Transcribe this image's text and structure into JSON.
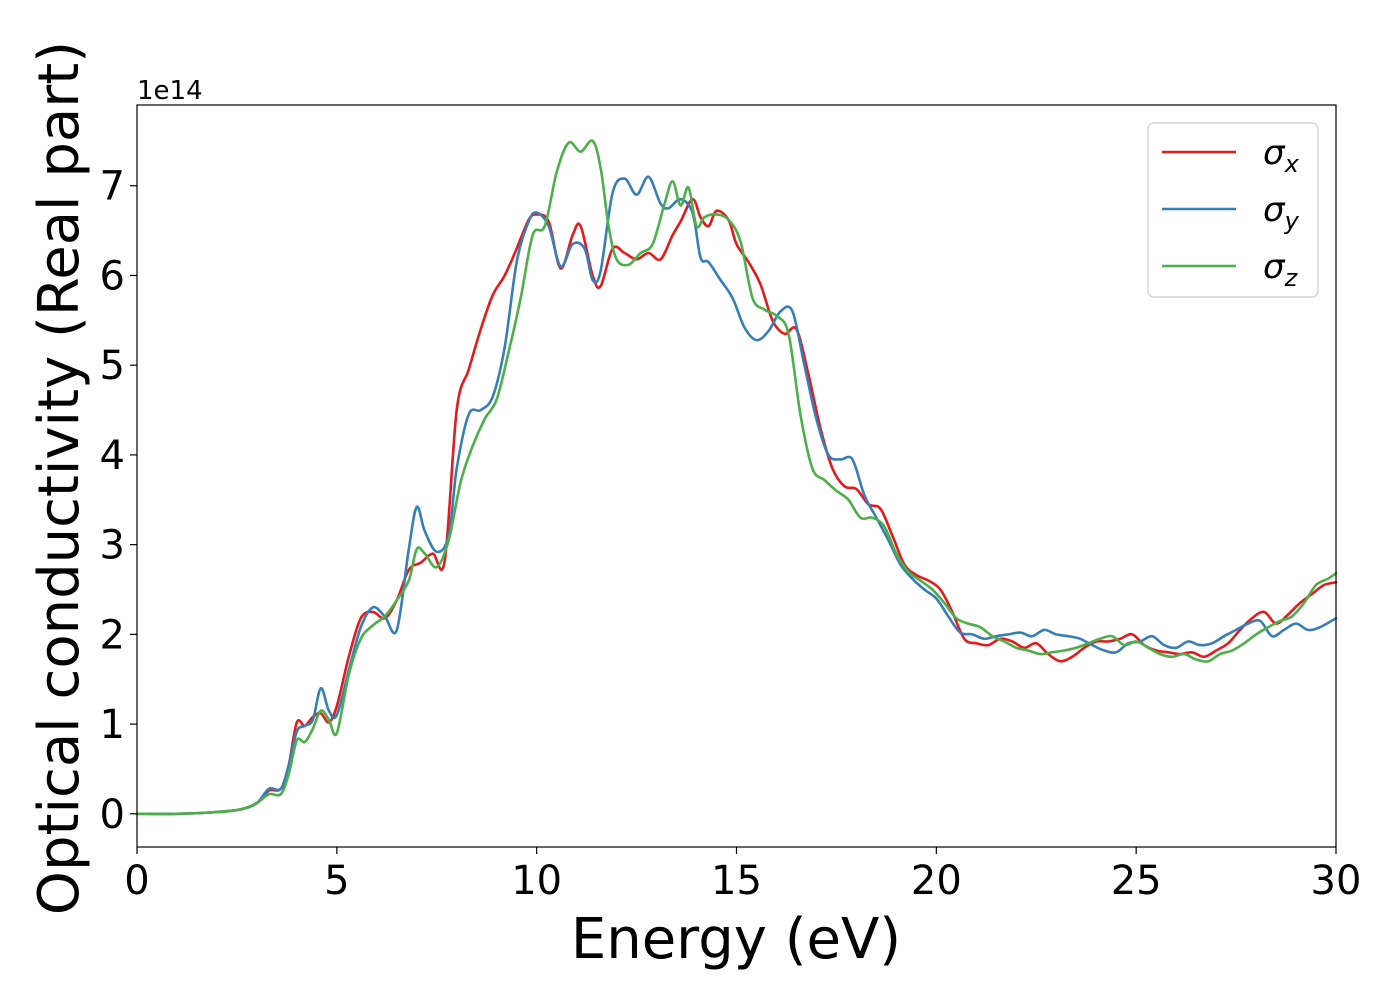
{
  "chart_data": {
    "type": "line",
    "title": "",
    "xlabel": "Energy (eV)",
    "ylabel": "Optical conductivity (Real part)",
    "y_offset_label": "1e14",
    "y_scale": 100000000000000.0,
    "xlim": [
      0,
      30
    ],
    "ylim": [
      -0.37,
      7.9
    ],
    "x_ticks": [
      0,
      5,
      10,
      15,
      20,
      25,
      30
    ],
    "y_ticks": [
      0,
      1,
      2,
      3,
      4,
      5,
      6,
      7
    ],
    "grid": false,
    "legend": "top-right",
    "series": [
      {
        "name": "σ",
        "subscript": "x",
        "color": "#e41a1c",
        "x": [
          0,
          1,
          2,
          2.6,
          3.0,
          3.3,
          3.6,
          3.8,
          4.0,
          4.2,
          4.4,
          4.6,
          4.8,
          5.0,
          5.3,
          5.6,
          5.9,
          6.2,
          6.5,
          6.8,
          7.1,
          7.4,
          7.7,
          8.0,
          8.3,
          8.6,
          8.9,
          9.2,
          9.5,
          9.8,
          10.0,
          10.3,
          10.6,
          10.9,
          11.1,
          11.4,
          11.6,
          11.9,
          12.2,
          12.5,
          12.8,
          13.1,
          13.4,
          13.6,
          13.9,
          14.1,
          14.3,
          14.5,
          14.8,
          15.0,
          15.3,
          15.6,
          15.9,
          16.2,
          16.5,
          16.8,
          17.1,
          17.4,
          17.7,
          18.0,
          18.3,
          18.6,
          18.9,
          19.2,
          19.5,
          19.8,
          20.1,
          20.4,
          20.7,
          21.0,
          21.3,
          21.6,
          21.9,
          22.2,
          22.5,
          22.8,
          23.1,
          23.4,
          23.7,
          24.0,
          24.3,
          24.6,
          24.9,
          25.2,
          25.5,
          25.8,
          26.1,
          26.4,
          26.7,
          27.0,
          27.3,
          27.6,
          27.9,
          28.2,
          28.5,
          28.8,
          29.1,
          29.4,
          29.7,
          30
        ],
        "y": [
          0,
          0,
          0.02,
          0.05,
          0.12,
          0.26,
          0.28,
          0.55,
          1.02,
          0.98,
          1.08,
          1.12,
          1.02,
          1.2,
          1.75,
          2.18,
          2.25,
          2.18,
          2.38,
          2.72,
          2.8,
          2.9,
          2.82,
          4.5,
          4.95,
          5.4,
          5.78,
          6.0,
          6.3,
          6.62,
          6.68,
          6.6,
          6.08,
          6.45,
          6.55,
          6.0,
          5.88,
          6.3,
          6.25,
          6.18,
          6.25,
          6.18,
          6.45,
          6.6,
          6.85,
          6.65,
          6.55,
          6.72,
          6.62,
          6.35,
          6.15,
          5.9,
          5.5,
          5.35,
          5.4,
          4.9,
          4.3,
          3.85,
          3.65,
          3.62,
          3.45,
          3.4,
          3.1,
          2.78,
          2.66,
          2.6,
          2.5,
          2.25,
          1.95,
          1.9,
          1.88,
          1.95,
          1.92,
          1.85,
          1.9,
          1.78,
          1.7,
          1.75,
          1.85,
          1.92,
          1.92,
          1.95,
          2.0,
          1.88,
          1.82,
          1.8,
          1.78,
          1.8,
          1.75,
          1.82,
          1.9,
          2.05,
          2.18,
          2.25,
          2.12,
          2.22,
          2.35,
          2.45,
          2.55,
          2.58
        ]
      },
      {
        "name": "σ",
        "subscript": "y",
        "color": "#377eb8",
        "x": [
          0,
          1,
          2,
          2.6,
          3.0,
          3.3,
          3.6,
          3.8,
          4.0,
          4.2,
          4.4,
          4.6,
          4.8,
          5.0,
          5.3,
          5.6,
          5.9,
          6.2,
          6.5,
          6.8,
          7.0,
          7.2,
          7.5,
          7.8,
          8.0,
          8.3,
          8.6,
          8.9,
          9.2,
          9.5,
          9.8,
          10.0,
          10.3,
          10.6,
          10.9,
          11.2,
          11.4,
          11.6,
          11.9,
          12.2,
          12.5,
          12.8,
          13.1,
          13.3,
          13.6,
          13.9,
          14.1,
          14.3,
          14.6,
          14.9,
          15.2,
          15.5,
          15.8,
          16.1,
          16.4,
          16.7,
          17.0,
          17.3,
          17.6,
          17.9,
          18.2,
          18.5,
          18.8,
          19.1,
          19.4,
          19.7,
          20.0,
          20.3,
          20.6,
          20.9,
          21.2,
          21.5,
          21.8,
          22.1,
          22.4,
          22.7,
          23.0,
          23.3,
          23.6,
          23.9,
          24.2,
          24.5,
          24.8,
          25.1,
          25.4,
          25.7,
          26.0,
          26.3,
          26.6,
          26.9,
          27.2,
          27.5,
          27.8,
          28.1,
          28.4,
          28.7,
          29.0,
          29.3,
          29.6,
          30
        ],
        "y": [
          0,
          0,
          0.02,
          0.05,
          0.12,
          0.28,
          0.28,
          0.55,
          0.92,
          0.98,
          1.05,
          1.4,
          1.15,
          1.1,
          1.6,
          2.08,
          2.3,
          2.2,
          2.05,
          2.95,
          3.42,
          3.15,
          2.92,
          3.1,
          3.85,
          4.45,
          4.5,
          4.65,
          5.2,
          6.15,
          6.6,
          6.7,
          6.55,
          6.1,
          6.35,
          6.3,
          5.95,
          6.05,
          6.92,
          7.08,
          6.9,
          7.1,
          6.8,
          6.75,
          6.85,
          6.7,
          6.2,
          6.15,
          5.95,
          5.75,
          5.42,
          5.28,
          5.38,
          5.6,
          5.6,
          5.0,
          4.4,
          4.0,
          3.95,
          3.95,
          3.55,
          3.3,
          3.05,
          2.78,
          2.62,
          2.5,
          2.4,
          2.2,
          2.02,
          2.0,
          1.95,
          1.98,
          2.0,
          2.02,
          1.98,
          2.05,
          2.0,
          1.98,
          1.95,
          1.88,
          1.82,
          1.8,
          1.9,
          1.92,
          1.98,
          1.88,
          1.85,
          1.92,
          1.88,
          1.9,
          1.98,
          2.05,
          2.12,
          2.15,
          1.98,
          2.05,
          2.12,
          2.05,
          2.08,
          2.18
        ]
      },
      {
        "name": "σ",
        "subscript": "z",
        "color": "#4daf4a",
        "x": [
          0,
          1,
          2,
          2.6,
          3.0,
          3.3,
          3.6,
          3.8,
          4.0,
          4.2,
          4.4,
          4.6,
          4.8,
          5.0,
          5.3,
          5.6,
          5.9,
          6.2,
          6.5,
          6.8,
          7.0,
          7.2,
          7.5,
          7.8,
          8.1,
          8.4,
          8.7,
          9.0,
          9.3,
          9.6,
          9.9,
          10.2,
          10.5,
          10.8,
          11.1,
          11.4,
          11.6,
          11.8,
          12.0,
          12.3,
          12.6,
          12.9,
          13.2,
          13.4,
          13.6,
          13.8,
          14.0,
          14.2,
          14.5,
          14.8,
          15.1,
          15.4,
          15.7,
          16.0,
          16.3,
          16.6,
          16.9,
          17.2,
          17.5,
          17.8,
          18.1,
          18.4,
          18.7,
          19.0,
          19.3,
          19.6,
          19.9,
          20.2,
          20.5,
          20.8,
          21.1,
          21.4,
          21.7,
          22.0,
          22.3,
          22.6,
          22.9,
          23.2,
          23.5,
          23.8,
          24.1,
          24.4,
          24.7,
          25.0,
          25.3,
          25.6,
          25.9,
          26.2,
          26.5,
          26.8,
          27.1,
          27.4,
          27.7,
          28.0,
          28.3,
          28.6,
          28.9,
          29.2,
          29.5,
          29.8,
          30
        ],
        "y": [
          0,
          0,
          0.02,
          0.05,
          0.12,
          0.22,
          0.22,
          0.45,
          0.82,
          0.8,
          0.95,
          1.15,
          1.05,
          0.9,
          1.55,
          1.95,
          2.1,
          2.2,
          2.38,
          2.6,
          2.95,
          2.9,
          2.75,
          3.05,
          3.7,
          4.1,
          4.4,
          4.62,
          5.15,
          5.75,
          6.45,
          6.55,
          7.15,
          7.48,
          7.38,
          7.5,
          7.2,
          6.55,
          6.18,
          6.12,
          6.25,
          6.35,
          6.8,
          7.05,
          6.78,
          6.98,
          6.55,
          6.65,
          6.68,
          6.62,
          6.38,
          5.75,
          5.62,
          5.55,
          5.35,
          4.45,
          3.85,
          3.72,
          3.6,
          3.5,
          3.3,
          3.3,
          3.2,
          2.9,
          2.7,
          2.6,
          2.5,
          2.35,
          2.18,
          2.12,
          2.08,
          1.98,
          1.92,
          1.85,
          1.82,
          1.78,
          1.8,
          1.82,
          1.85,
          1.9,
          1.95,
          1.98,
          1.88,
          1.92,
          1.85,
          1.78,
          1.75,
          1.78,
          1.72,
          1.7,
          1.78,
          1.82,
          1.9,
          2.0,
          2.08,
          2.15,
          2.2,
          2.35,
          2.55,
          2.62,
          2.68
        ]
      }
    ]
  }
}
